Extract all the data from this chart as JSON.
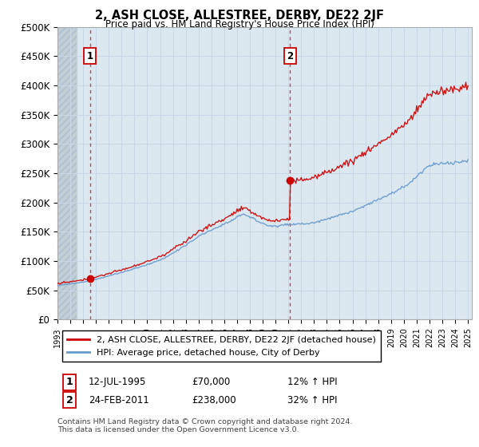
{
  "title": "2, ASH CLOSE, ALLESTREE, DERBY, DE22 2JF",
  "subtitle": "Price paid vs. HM Land Registry's House Price Index (HPI)",
  "ytick_values": [
    0,
    50000,
    100000,
    150000,
    200000,
    250000,
    300000,
    350000,
    400000,
    450000,
    500000
  ],
  "xstart_year": 1993,
  "xend_year": 2025,
  "hpi_color": "#6699cc",
  "price_color": "#cc0000",
  "dashed_line_color": "#cc0000",
  "marker_color": "#cc0000",
  "transaction1": {
    "date_num": 1995.54,
    "price": 70000,
    "label": "1"
  },
  "transaction2": {
    "date_num": 2011.12,
    "price": 238000,
    "label": "2"
  },
  "legend_line1": "2, ASH CLOSE, ALLESTREE, DERBY, DE22 2JF (detached house)",
  "legend_line2": "HPI: Average price, detached house, City of Derby",
  "table_row1_date": "12-JUL-1995",
  "table_row1_price": "£70,000",
  "table_row1_pct": "12% ↑ HPI",
  "table_row2_date": "24-FEB-2011",
  "table_row2_price": "£238,000",
  "table_row2_pct": "32% ↑ HPI",
  "footer_text": "Contains HM Land Registry data © Crown copyright and database right 2024.\nThis data is licensed under the Open Government Licence v3.0.",
  "grid_color": "#c8d8e8",
  "bg_color": "#dce8f0",
  "hatch_color": "#c0ccd4"
}
